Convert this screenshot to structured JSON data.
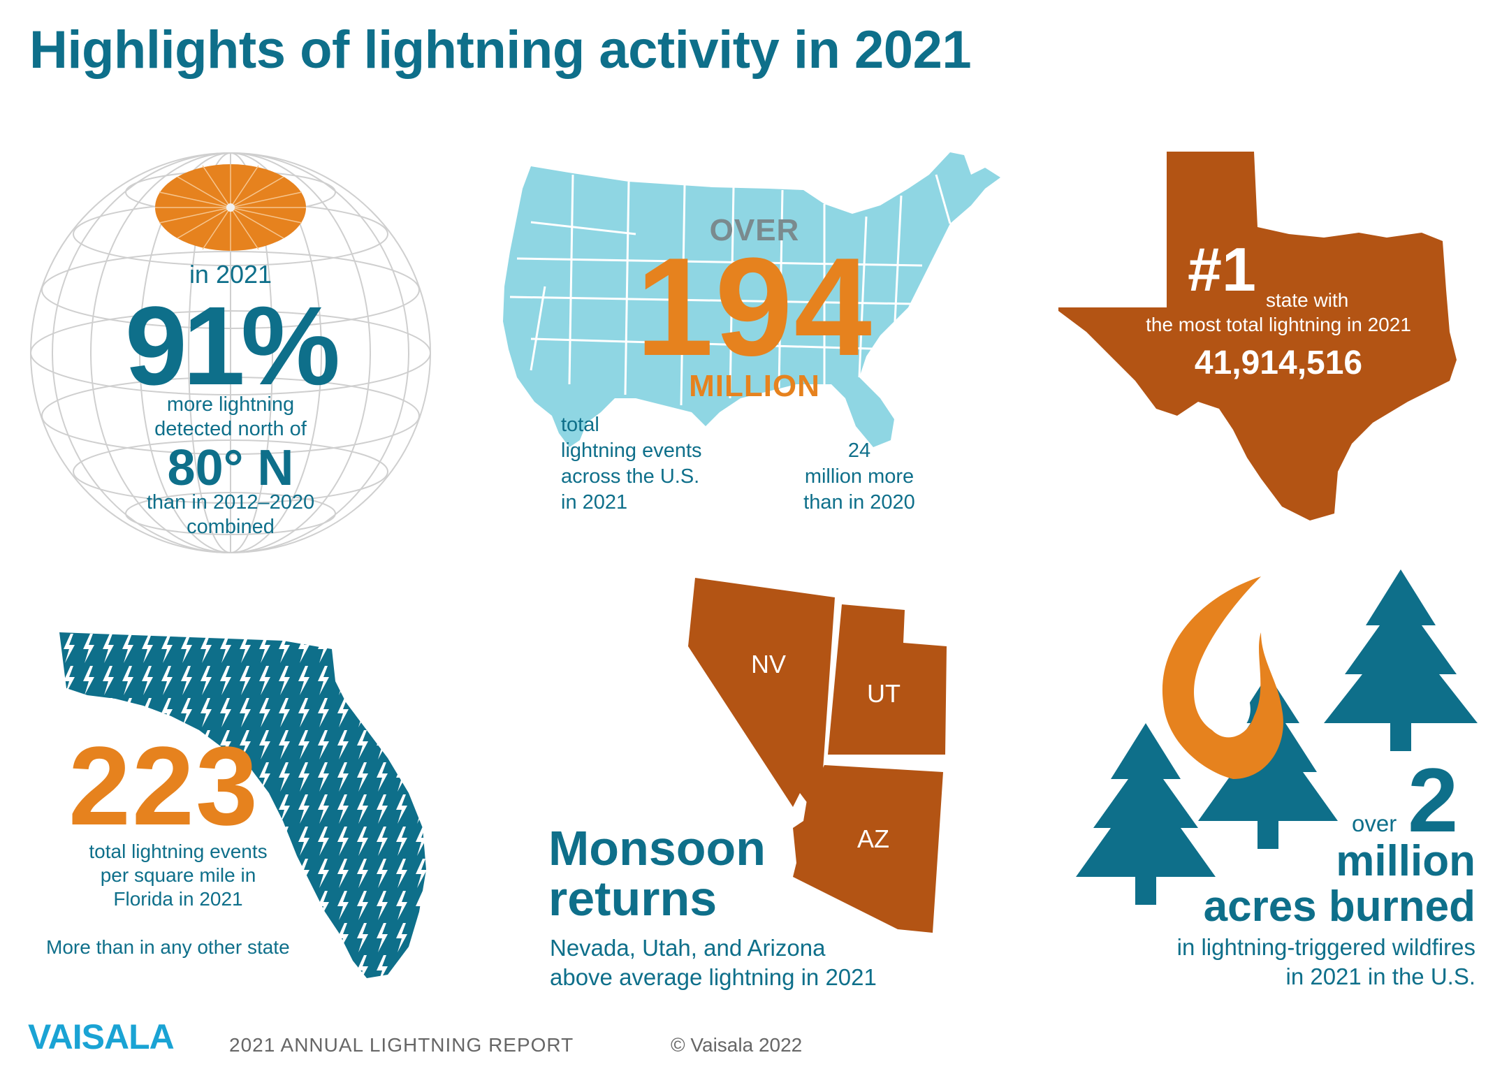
{
  "title": "Highlights of lightning activity in 2021",
  "arctic": {
    "year_label": "in 2021",
    "percent": "91%",
    "desc_line1": "more lightning",
    "desc_line2": "detected north of",
    "latitude": "80° N",
    "desc_line3": "than in 2012–2020",
    "desc_line4": "combined"
  },
  "usa": {
    "over": "OVER",
    "number": "194",
    "unit": "MILLION",
    "desc_line1": "total",
    "desc_line2": "lightning events",
    "desc_line3": "across the U.S.",
    "desc_line4": "in 2021",
    "more_line1": "24",
    "more_line2": "million more",
    "more_line3": "than in 2020"
  },
  "texas": {
    "rank": "#1",
    "line1": "state with",
    "line2": "the most total lightning in 2021",
    "value": "41,914,516"
  },
  "florida": {
    "number": "223",
    "line1": "total lightning events",
    "line2": "per square mile in",
    "line3": "Florida in 2021",
    "note": "More than in any other state"
  },
  "monsoon": {
    "state_nv": "NV",
    "state_ut": "UT",
    "state_az": "AZ",
    "headline1": "Monsoon",
    "headline2": "returns",
    "line1": "Nevada, Utah, and Arizona",
    "line2": "above average lightning in 2021"
  },
  "wildfire": {
    "over": "over",
    "number": "2",
    "unit": "million",
    "headline": "acres burned",
    "line1": "in lightning-triggered wildfires",
    "line2": "in 2021 in the U.S."
  },
  "footer": {
    "brand": "VAISALA",
    "report": "2021 ANNUAL LIGHTNING REPORT",
    "copyright": "© Vaisala 2022"
  },
  "colors": {
    "teal": "#0e6f8a",
    "orange": "#e6821e",
    "rust": "#b35414",
    "map_blue": "#8fd6e3"
  }
}
